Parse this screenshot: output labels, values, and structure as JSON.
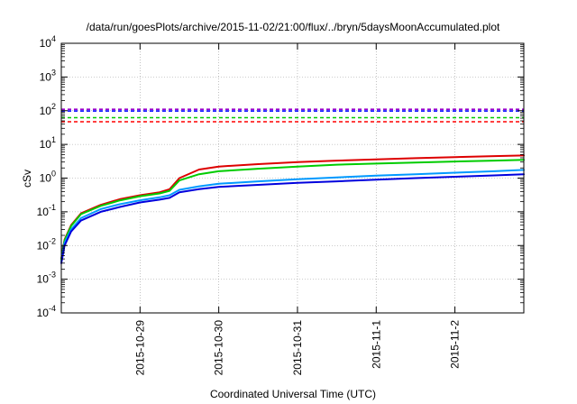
{
  "chart_data": {
    "type": "line",
    "title": "/data/run/goesPlots/archive/2015-11-02/21:00/flux/../bryn/5daysMoonAccumulated.plot",
    "xlabel": "Coordinated Universal Time (UTC)",
    "ylabel": "cSv",
    "yscale": "log",
    "ylim": [
      0.0001,
      10000
    ],
    "xlim": [
      "2015-10-28 00:00",
      "2015-11-02 21:00"
    ],
    "grid": true,
    "legend": "none",
    "yticks": [
      {
        "base": "10",
        "exp": "-4",
        "value": 0.0001
      },
      {
        "base": "10",
        "exp": "-3",
        "value": 0.001
      },
      {
        "base": "10",
        "exp": "-2",
        "value": 0.01
      },
      {
        "base": "10",
        "exp": "-1",
        "value": 0.1
      },
      {
        "base": "10",
        "exp": "0",
        "value": 1
      },
      {
        "base": "10",
        "exp": "1",
        "value": 10
      },
      {
        "base": "10",
        "exp": "2",
        "value": 100
      },
      {
        "base": "10",
        "exp": "3",
        "value": 1000
      },
      {
        "base": "10",
        "exp": "4",
        "value": 10000
      }
    ],
    "xticks": [
      {
        "label": "2015-10-29",
        "value": "2015-10-29 00:00"
      },
      {
        "label": "2015-10-30",
        "value": "2015-10-30 00:00"
      },
      {
        "label": "2015-10-31",
        "value": "2015-10-31 00:00"
      },
      {
        "label": "2015-11-1",
        "value": "2015-11-01 00:00"
      },
      {
        "label": "2015-11-2",
        "value": "2015-11-02 00:00"
      }
    ],
    "reference_lines": [
      {
        "color": "#9900cc",
        "style": "dashed",
        "y": 110
      },
      {
        "color": "#0000ff",
        "style": "dashed",
        "y": 98
      },
      {
        "color": "#00cc00",
        "style": "dashed",
        "y": 62
      },
      {
        "color": "#ff0000",
        "style": "dashed",
        "y": 47
      }
    ],
    "series": [
      {
        "color": "#dd0000",
        "points": [
          [
            "2015-10-28 00:00",
            0.004
          ],
          [
            "2015-10-28 01:00",
            0.015
          ],
          [
            "2015-10-28 03:00",
            0.04
          ],
          [
            "2015-10-28 06:00",
            0.09
          ],
          [
            "2015-10-28 12:00",
            0.16
          ],
          [
            "2015-10-28 18:00",
            0.24
          ],
          [
            "2015-10-29 00:00",
            0.31
          ],
          [
            "2015-10-29 06:00",
            0.38
          ],
          [
            "2015-10-29 09:00",
            0.47
          ],
          [
            "2015-10-29 12:00",
            1.0
          ],
          [
            "2015-10-29 18:00",
            1.8
          ],
          [
            "2015-10-30 00:00",
            2.2
          ],
          [
            "2015-10-30 12:00",
            2.6
          ],
          [
            "2015-10-31 00:00",
            3.0
          ],
          [
            "2015-10-31 12:00",
            3.3
          ],
          [
            "2015-11-01 00:00",
            3.6
          ],
          [
            "2015-11-01 12:00",
            3.9
          ],
          [
            "2015-11-02 00:00",
            4.2
          ],
          [
            "2015-11-02 12:00",
            4.5
          ],
          [
            "2015-11-02 21:00",
            4.7
          ]
        ]
      },
      {
        "color": "#00cc00",
        "points": [
          [
            "2015-10-28 00:00",
            0.004
          ],
          [
            "2015-10-28 01:00",
            0.014
          ],
          [
            "2015-10-28 03:00",
            0.038
          ],
          [
            "2015-10-28 06:00",
            0.085
          ],
          [
            "2015-10-28 12:00",
            0.15
          ],
          [
            "2015-10-28 18:00",
            0.22
          ],
          [
            "2015-10-29 00:00",
            0.29
          ],
          [
            "2015-10-29 06:00",
            0.35
          ],
          [
            "2015-10-29 09:00",
            0.42
          ],
          [
            "2015-10-29 12:00",
            0.85
          ],
          [
            "2015-10-29 18:00",
            1.3
          ],
          [
            "2015-10-30 00:00",
            1.6
          ],
          [
            "2015-10-30 12:00",
            1.9
          ],
          [
            "2015-10-31 00:00",
            2.2
          ],
          [
            "2015-10-31 12:00",
            2.5
          ],
          [
            "2015-11-01 00:00",
            2.7
          ],
          [
            "2015-11-01 12:00",
            2.9
          ],
          [
            "2015-11-02 00:00",
            3.1
          ],
          [
            "2015-11-02 12:00",
            3.3
          ],
          [
            "2015-11-02 21:00",
            3.5
          ]
        ]
      },
      {
        "color": "#0099ff",
        "points": [
          [
            "2015-10-28 00:00",
            0.0035
          ],
          [
            "2015-10-28 01:00",
            0.012
          ],
          [
            "2015-10-28 03:00",
            0.03
          ],
          [
            "2015-10-28 06:00",
            0.065
          ],
          [
            "2015-10-28 12:00",
            0.12
          ],
          [
            "2015-10-28 18:00",
            0.17
          ],
          [
            "2015-10-29 00:00",
            0.22
          ],
          [
            "2015-10-29 06:00",
            0.27
          ],
          [
            "2015-10-29 09:00",
            0.31
          ],
          [
            "2015-10-29 12:00",
            0.45
          ],
          [
            "2015-10-29 18:00",
            0.57
          ],
          [
            "2015-10-30 00:00",
            0.68
          ],
          [
            "2015-10-30 12:00",
            0.8
          ],
          [
            "2015-10-31 00:00",
            0.93
          ],
          [
            "2015-10-31 12:00",
            1.05
          ],
          [
            "2015-11-01 00:00",
            1.18
          ],
          [
            "2015-11-01 12:00",
            1.3
          ],
          [
            "2015-11-02 00:00",
            1.45
          ],
          [
            "2015-11-02 12:00",
            1.6
          ],
          [
            "2015-11-02 21:00",
            1.75
          ]
        ]
      },
      {
        "color": "#0000dd",
        "points": [
          [
            "2015-10-28 00:00",
            0.003
          ],
          [
            "2015-10-28 01:00",
            0.01
          ],
          [
            "2015-10-28 03:00",
            0.026
          ],
          [
            "2015-10-28 06:00",
            0.055
          ],
          [
            "2015-10-28 12:00",
            0.1
          ],
          [
            "2015-10-28 18:00",
            0.14
          ],
          [
            "2015-10-29 00:00",
            0.19
          ],
          [
            "2015-10-29 06:00",
            0.23
          ],
          [
            "2015-10-29 09:00",
            0.26
          ],
          [
            "2015-10-29 12:00",
            0.38
          ],
          [
            "2015-10-29 18:00",
            0.47
          ],
          [
            "2015-10-30 00:00",
            0.55
          ],
          [
            "2015-10-30 12:00",
            0.63
          ],
          [
            "2015-10-31 00:00",
            0.72
          ],
          [
            "2015-10-31 12:00",
            0.8
          ],
          [
            "2015-11-01 00:00",
            0.9
          ],
          [
            "2015-11-01 12:00",
            1.0
          ],
          [
            "2015-11-02 00:00",
            1.1
          ],
          [
            "2015-11-02 12:00",
            1.2
          ],
          [
            "2015-11-02 21:00",
            1.3
          ]
        ]
      }
    ]
  }
}
